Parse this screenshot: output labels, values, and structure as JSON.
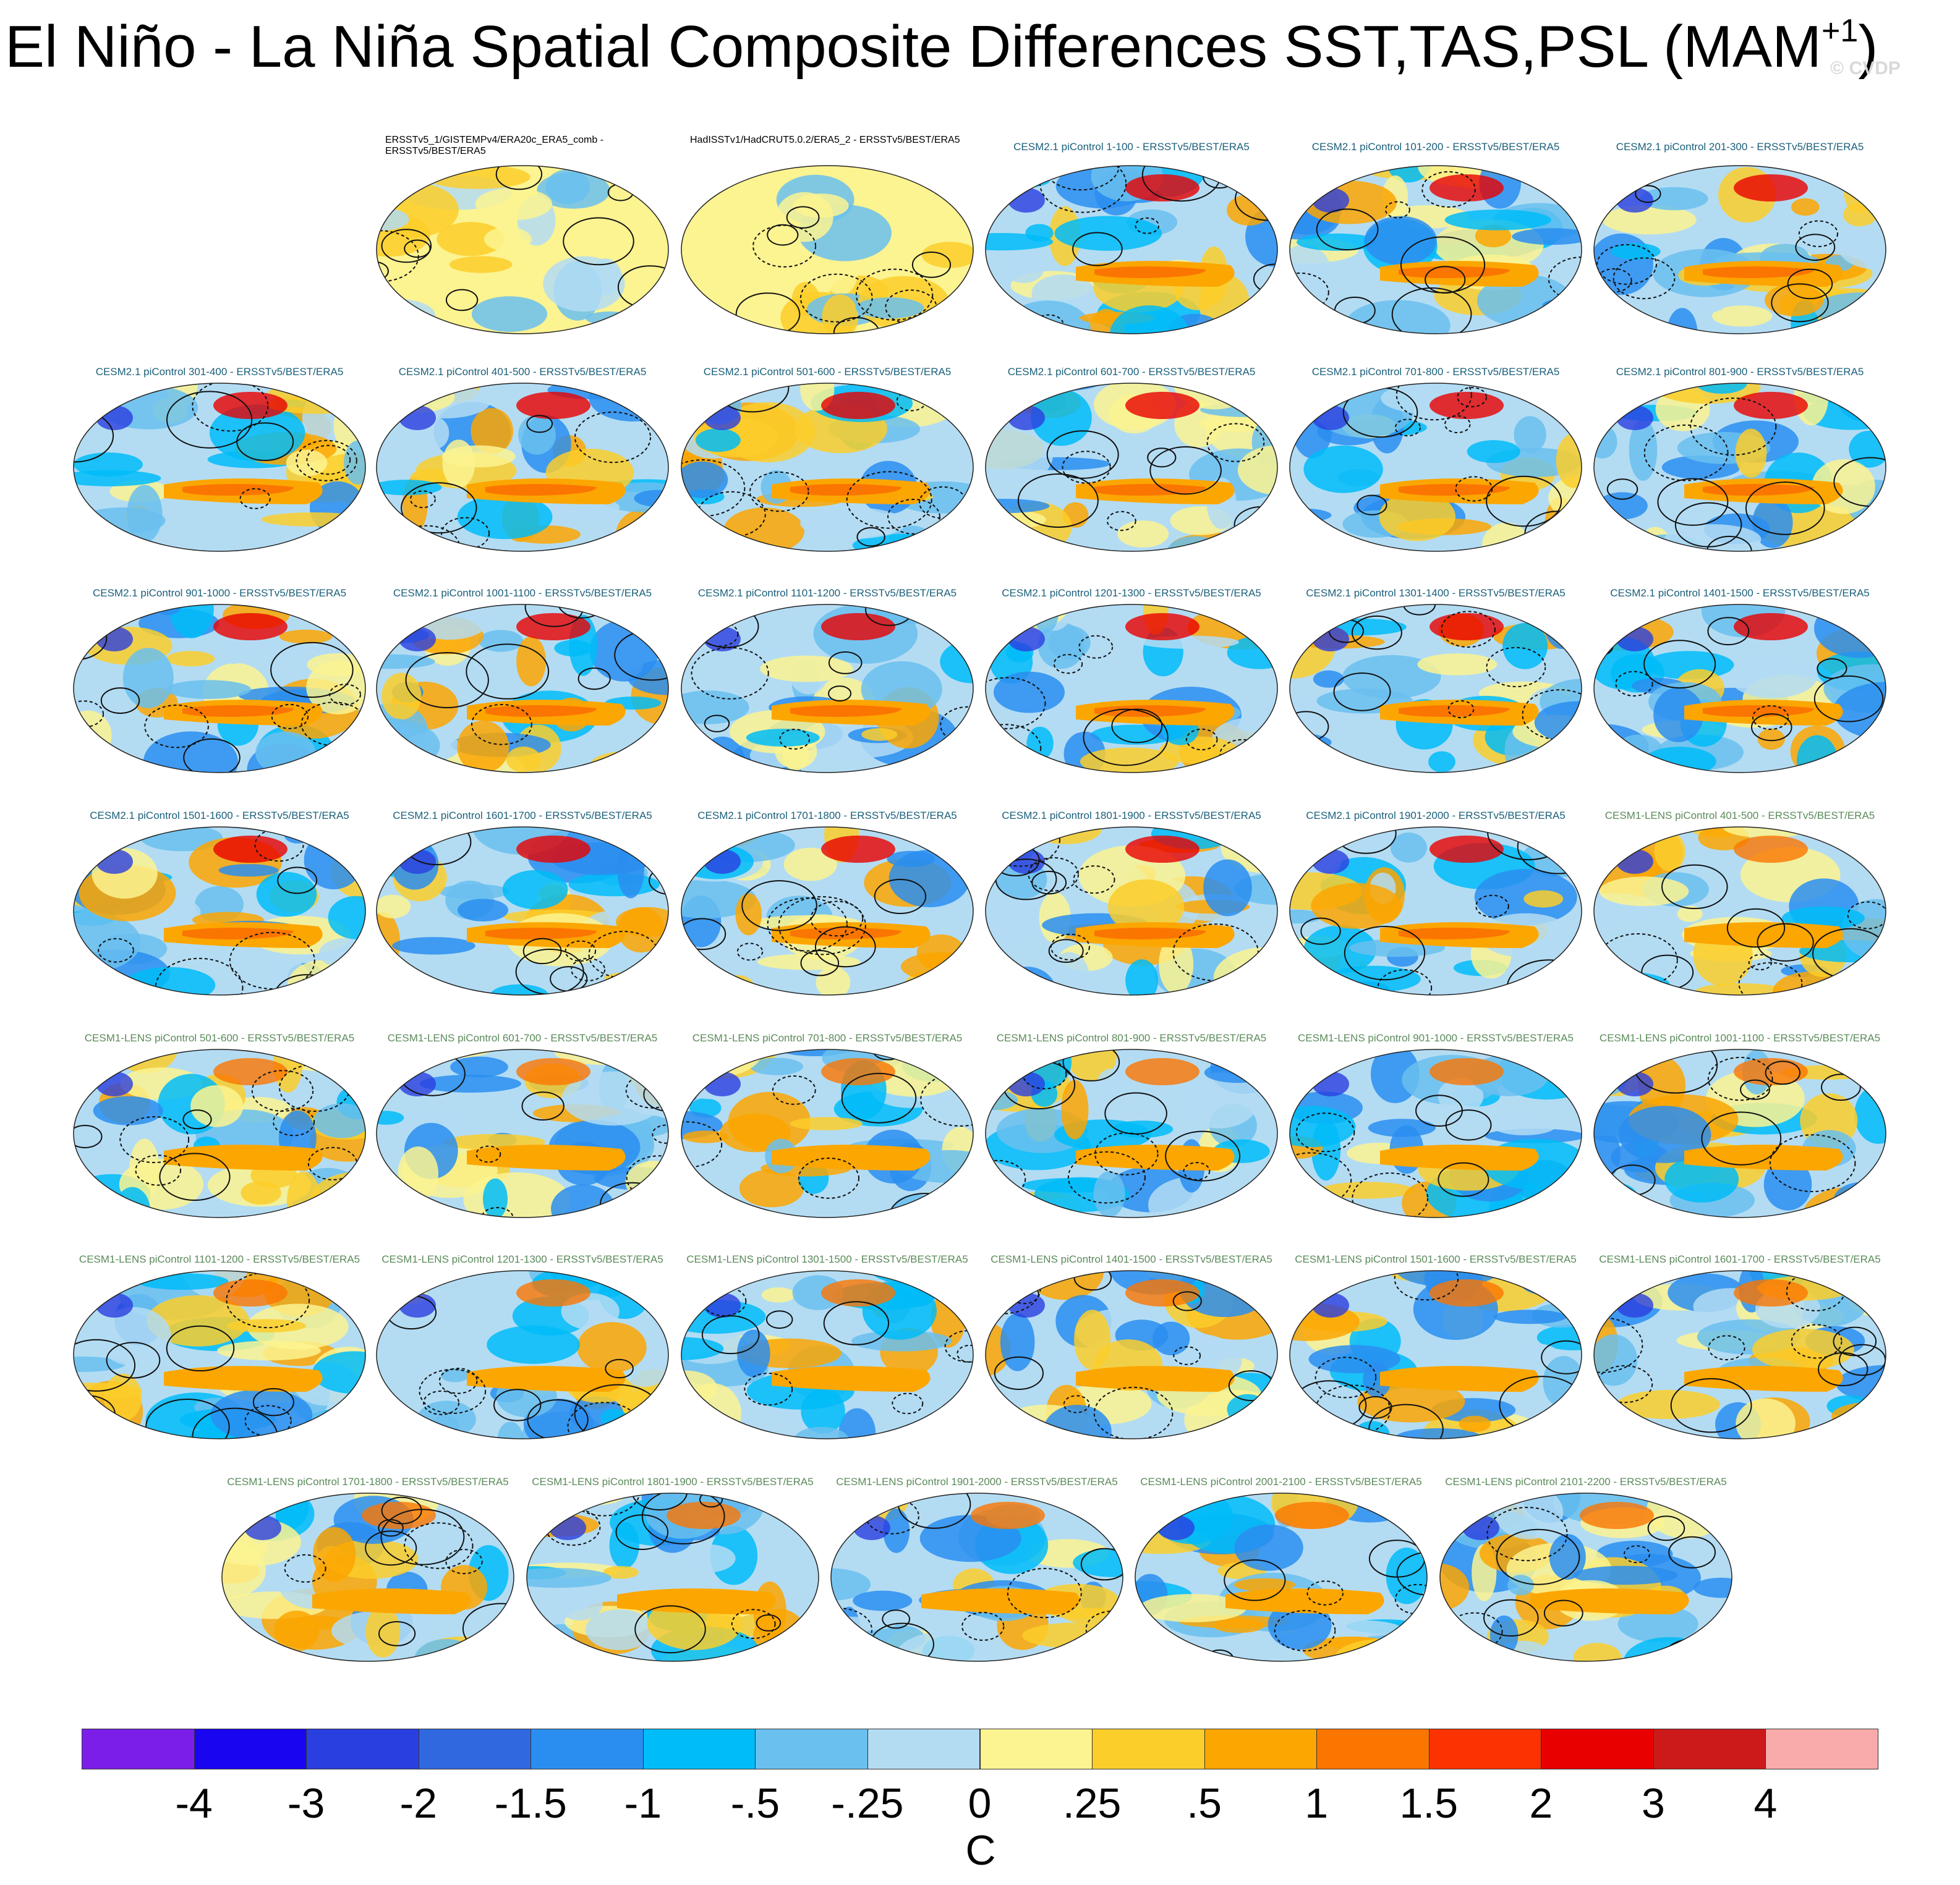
{
  "title": {
    "main": "El Niño - La Niña Spatial Composite Differences SST,TAS,PSL (MAM",
    "superscript": "+1",
    "close": ")"
  },
  "watermark": "© CVDP",
  "chart_data": {
    "type": "heatmap",
    "description_type": "composite-difference map panels",
    "panels": [
      {
        "label": "ERSSTv5_1/GISTEMPv4/ERA20c_ERA5_comb - ERSSTv5/BEST/ERA5",
        "group": "obs"
      },
      {
        "label": "HadISSTv1/HadCRUT5.0.2/ERA5_2 - ERSSTv5/BEST/ERA5",
        "group": "obs"
      },
      {
        "label": "CESM2.1 piControl 1-100 - ERSSTv5/BEST/ERA5",
        "group": "cesm2"
      },
      {
        "label": "CESM2.1 piControl 101-200 - ERSSTv5/BEST/ERA5",
        "group": "cesm2"
      },
      {
        "label": "CESM2.1 piControl 201-300 - ERSSTv5/BEST/ERA5",
        "group": "cesm2"
      },
      {
        "label": "CESM2.1 piControl 301-400 - ERSSTv5/BEST/ERA5",
        "group": "cesm2"
      },
      {
        "label": "CESM2.1 piControl 401-500 - ERSSTv5/BEST/ERA5",
        "group": "cesm2"
      },
      {
        "label": "CESM2.1 piControl 501-600 - ERSSTv5/BEST/ERA5",
        "group": "cesm2"
      },
      {
        "label": "CESM2.1 piControl 601-700 - ERSSTv5/BEST/ERA5",
        "group": "cesm2"
      },
      {
        "label": "CESM2.1 piControl 701-800 - ERSSTv5/BEST/ERA5",
        "group": "cesm2"
      },
      {
        "label": "CESM2.1 piControl 801-900 - ERSSTv5/BEST/ERA5",
        "group": "cesm2"
      },
      {
        "label": "CESM2.1 piControl 901-1000 - ERSSTv5/BEST/ERA5",
        "group": "cesm2"
      },
      {
        "label": "CESM2.1 piControl 1001-1100 - ERSSTv5/BEST/ERA5",
        "group": "cesm2"
      },
      {
        "label": "CESM2.1 piControl 1101-1200 - ERSSTv5/BEST/ERA5",
        "group": "cesm2"
      },
      {
        "label": "CESM2.1 piControl 1201-1300 - ERSSTv5/BEST/ERA5",
        "group": "cesm2"
      },
      {
        "label": "CESM2.1 piControl 1301-1400 - ERSSTv5/BEST/ERA5",
        "group": "cesm2"
      },
      {
        "label": "CESM2.1 piControl 1401-1500 - ERSSTv5/BEST/ERA5",
        "group": "cesm2"
      },
      {
        "label": "CESM2.1 piControl 1501-1600 - ERSSTv5/BEST/ERA5",
        "group": "cesm2"
      },
      {
        "label": "CESM2.1 piControl 1601-1700 - ERSSTv5/BEST/ERA5",
        "group": "cesm2"
      },
      {
        "label": "CESM2.1 piControl 1701-1800 - ERSSTv5/BEST/ERA5",
        "group": "cesm2"
      },
      {
        "label": "CESM2.1 piControl 1801-1900 - ERSSTv5/BEST/ERA5",
        "group": "cesm2"
      },
      {
        "label": "CESM2.1 piControl 1901-2000 - ERSSTv5/BEST/ERA5",
        "group": "cesm2"
      },
      {
        "label": "CESM1-LENS piControl 401-500 - ERSSTv5/BEST/ERA5",
        "group": "lens"
      },
      {
        "label": "CESM1-LENS piControl 501-600 - ERSSTv5/BEST/ERA5",
        "group": "lens"
      },
      {
        "label": "CESM1-LENS piControl 601-700 - ERSSTv5/BEST/ERA5",
        "group": "lens"
      },
      {
        "label": "CESM1-LENS piControl 701-800 - ERSSTv5/BEST/ERA5",
        "group": "lens"
      },
      {
        "label": "CESM1-LENS piControl 801-900 - ERSSTv5/BEST/ERA5",
        "group": "lens"
      },
      {
        "label": "CESM1-LENS piControl 901-1000 - ERSSTv5/BEST/ERA5",
        "group": "lens"
      },
      {
        "label": "CESM1-LENS piControl 1001-1100 - ERSSTv5/BEST/ERA5",
        "group": "lens"
      },
      {
        "label": "CESM1-LENS piControl 1101-1200 - ERSSTv5/BEST/ERA5",
        "group": "lens"
      },
      {
        "label": "CESM1-LENS piControl 1201-1300 - ERSSTv5/BEST/ERA5",
        "group": "lens"
      },
      {
        "label": "CESM1-LENS piControl 1301-1500 - ERSSTv5/BEST/ERA5",
        "group": "lens"
      },
      {
        "label": "CESM1-LENS piControl 1401-1500 - ERSSTv5/BEST/ERA5",
        "group": "lens"
      },
      {
        "label": "CESM1-LENS piControl 1501-1600 - ERSSTv5/BEST/ERA5",
        "group": "lens"
      },
      {
        "label": "CESM1-LENS piControl 1601-1700 - ERSSTv5/BEST/ERA5",
        "group": "lens"
      },
      {
        "label": "CESM1-LENS piControl 1701-1800 - ERSSTv5/BEST/ERA5",
        "group": "lens"
      },
      {
        "label": "CESM1-LENS piControl 1801-1900 - ERSSTv5/BEST/ERA5",
        "group": "lens"
      },
      {
        "label": "CESM1-LENS piControl 1901-2000 - ERSSTv5/BEST/ERA5",
        "group": "lens"
      },
      {
        "label": "CESM1-LENS piControl 2001-2100 - ERSSTv5/BEST/ERA5",
        "group": "lens"
      },
      {
        "label": "CESM1-LENS piControl 2101-2200 - ERSSTv5/BEST/ERA5",
        "group": "lens"
      }
    ],
    "colorbar": {
      "units": "C",
      "levels": [
        "-4",
        "-3",
        "-2",
        "-1.5",
        "-1",
        "-.5",
        "-.25",
        "0",
        ".25",
        ".5",
        "1",
        "1.5",
        "2",
        "3",
        "4"
      ],
      "colors": [
        "#7b1fe8",
        "#1a05f0",
        "#2a3fe0",
        "#3068e0",
        "#2a8ef0",
        "#00bcf8",
        "#6ac0ef",
        "#b3dcf3",
        "#fcf391",
        "#fcce2a",
        "#fca601",
        "#fb7501",
        "#fc3301",
        "#e80000",
        "#cc1a1a",
        "#f9aaaa"
      ]
    }
  }
}
